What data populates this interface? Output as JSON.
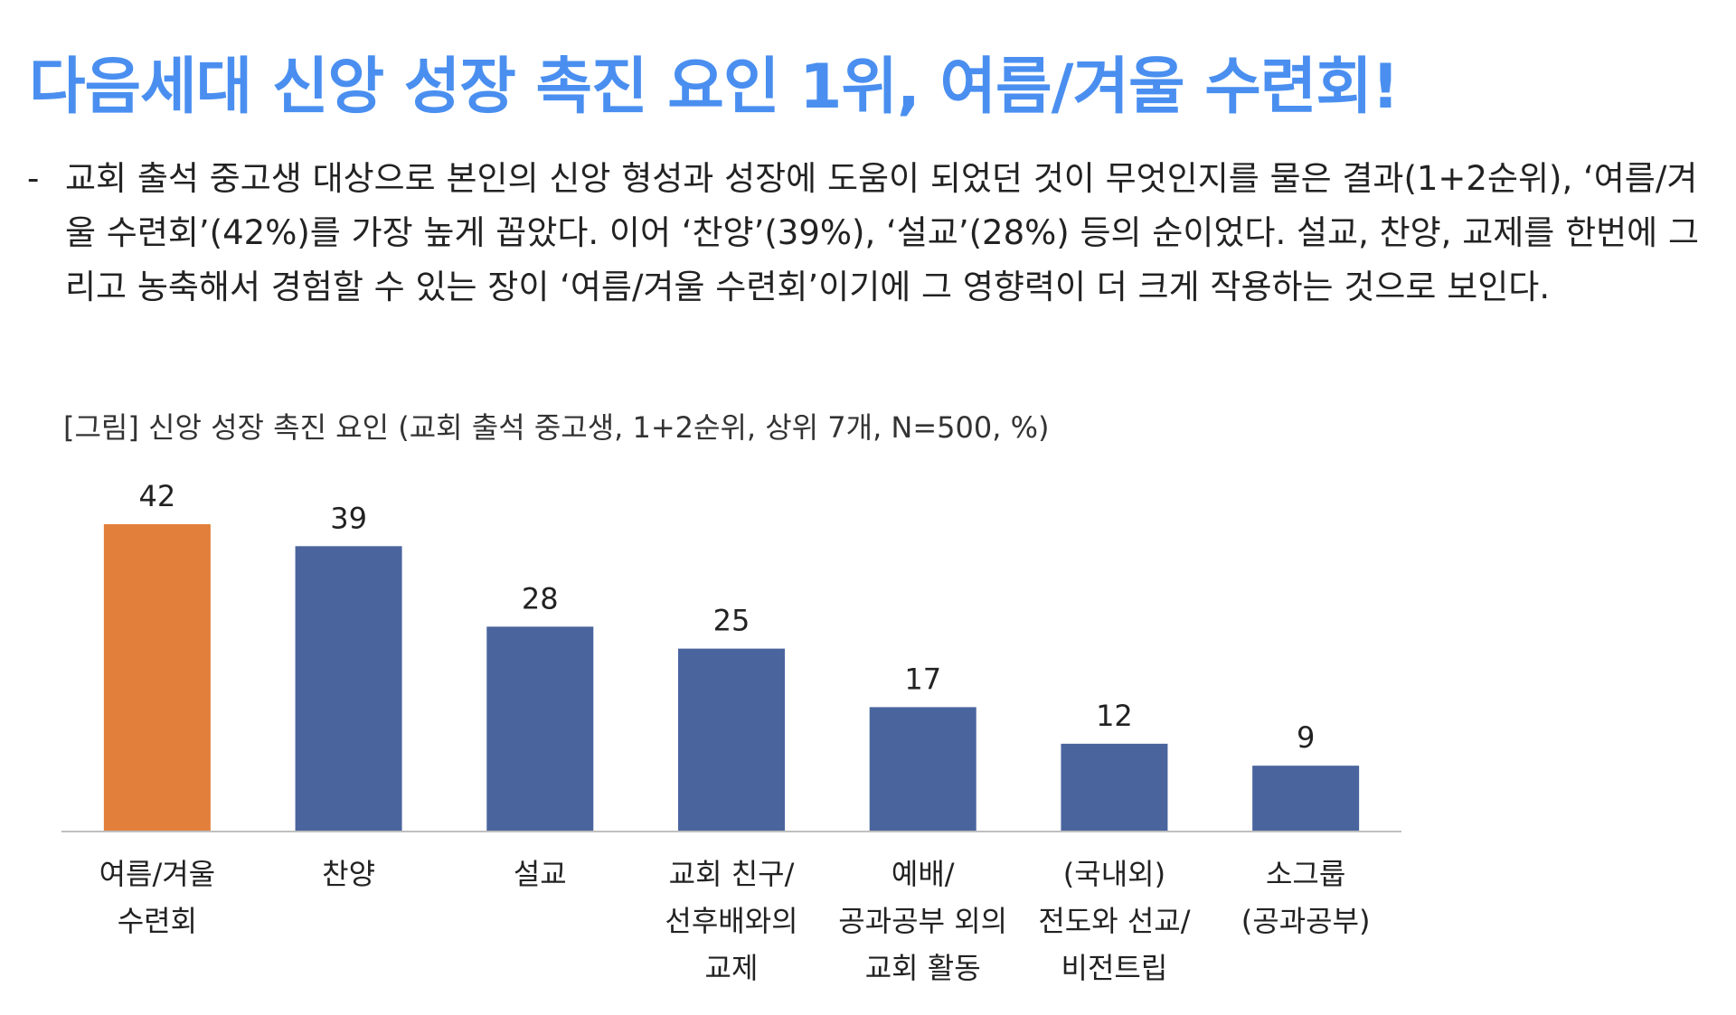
{
  "headline": "다음세대 신앙 성장 촉진 요인 1위, 여름/겨울 수련회!",
  "summary": {
    "bullet": "-",
    "text": "교회 출석 중고생 대상으로 본인의 신앙 형성과 성장에 도움이 되었던 것이 무엇인지를 물은 결과(1+2순위), ‘여름/겨울 수련회’(42%)를 가장 높게 꼽았다. 이어 ‘찬양’(39%), ‘설교’(28%) 등의 순이었다. 설교, 찬양, 교제를 한번에 그리고 농축해서 경험할 수 있는 장이 ‘여름/겨울 수련회’이기에 그 영향력이 더 크게 작용하는 것으로 보인다."
  },
  "figure_caption": "[그림] 신앙 성장 촉진 요인 (교회 출석 중고생, 1+2순위, 상위 7개, N=500, %)",
  "colors": {
    "highlight": "#e27f3a",
    "bar": "#4a659e",
    "axis": "#bfbfbf",
    "headline": "#4a8ff0"
  },
  "chart_data": {
    "type": "bar",
    "title": "",
    "xlabel": "",
    "ylabel": "",
    "ylim": [
      0,
      45
    ],
    "grid": false,
    "legend": "none",
    "highlight_index": 0,
    "categories": [
      [
        "여름/겨울",
        "수련회"
      ],
      [
        "찬양"
      ],
      [
        "설교"
      ],
      [
        "교회 친구/",
        "선후배와의",
        "교제"
      ],
      [
        "예배/",
        "공과공부 외의",
        "교회 활동"
      ],
      [
        "(국내외)",
        "전도와 선교/",
        "비전트립"
      ],
      [
        "소그룹",
        "(공과공부)"
      ]
    ],
    "values": [
      42,
      39,
      28,
      25,
      17,
      12,
      9
    ]
  }
}
